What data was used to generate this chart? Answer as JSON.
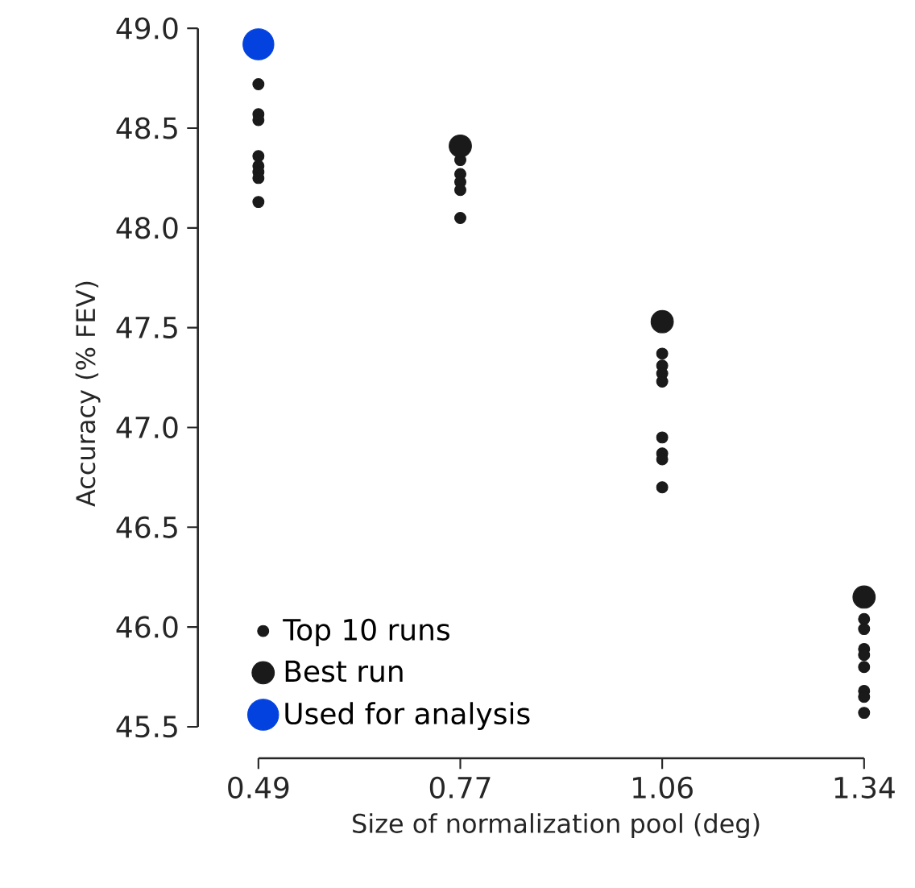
{
  "chart_data": {
    "type": "scatter",
    "xlabel": "Size of normalization pool (deg)",
    "ylabel": "Accuracy (% FEV)",
    "categories": [
      "0.49",
      "0.77",
      "1.06",
      "1.34"
    ],
    "ylim": [
      45.5,
      49.0
    ],
    "yticks": [
      {
        "value": 45.5,
        "label": "45.5"
      },
      {
        "value": 46.0,
        "label": "46.0"
      },
      {
        "value": 46.5,
        "label": "46.5"
      },
      {
        "value": 47.0,
        "label": "47.0"
      },
      {
        "value": 47.5,
        "label": "47.5"
      },
      {
        "value": 48.0,
        "label": "48.0"
      },
      {
        "value": 48.5,
        "label": "48.5"
      },
      {
        "value": 49.0,
        "label": "49.0"
      }
    ],
    "grid": false,
    "legend": "bottom left",
    "series": [
      {
        "name": "Top 10 runs",
        "color": "#1a1a1a",
        "x": [
          "0.49",
          "0.49",
          "0.49",
          "0.49",
          "0.49",
          "0.49",
          "0.49",
          "0.49",
          "0.77",
          "0.77",
          "0.77",
          "0.77",
          "0.77",
          "1.06",
          "1.06",
          "1.06",
          "1.06",
          "1.06",
          "1.06",
          "1.06",
          "1.06",
          "1.34",
          "1.34",
          "1.34",
          "1.34",
          "1.34",
          "1.34",
          "1.34",
          "1.34"
        ],
        "values": [
          48.72,
          48.57,
          48.54,
          48.36,
          48.31,
          48.28,
          48.25,
          48.13,
          48.34,
          48.27,
          48.23,
          48.19,
          48.05,
          47.37,
          47.31,
          47.27,
          47.23,
          46.95,
          46.87,
          46.84,
          46.7,
          46.04,
          45.99,
          45.89,
          45.86,
          45.8,
          45.68,
          45.65,
          45.57
        ]
      },
      {
        "name": "Best run",
        "color": "#1a1a1a",
        "x": [
          "0.77",
          "1.06",
          "1.34"
        ],
        "values": [
          48.41,
          47.53,
          46.15
        ]
      },
      {
        "name": "Used for analysis",
        "color": "#0342df",
        "x": [
          "0.49"
        ],
        "values": [
          48.92
        ]
      }
    ]
  }
}
